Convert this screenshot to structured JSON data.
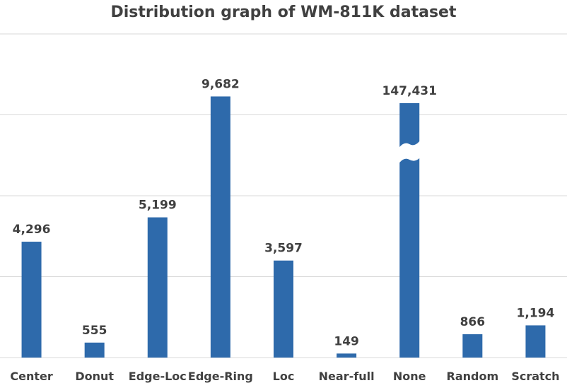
{
  "chart_data": {
    "type": "bar",
    "title": "Distribution graph of WM-811K dataset",
    "xlabel": "",
    "ylabel": "",
    "categories": [
      "Center",
      "Donut",
      "Edge-Loc",
      "Edge-Ring",
      "Loc",
      "Near-full",
      "None",
      "Random",
      "Scratch"
    ],
    "values": [
      4296,
      555,
      5199,
      9682,
      3597,
      149,
      147431,
      866,
      1194
    ],
    "data_labels": [
      "4,296",
      "555",
      "5,199",
      "9,682",
      "3,597",
      "149",
      "147,431",
      "866",
      "1,194"
    ],
    "broken_bar_category": "None",
    "ylim": [
      0,
      12000
    ],
    "grid": true,
    "legend": "none",
    "colors": {
      "bar": "#2E6AAB",
      "grid": "#D9D9D9",
      "text": "#404040",
      "background": "#FFFFFF"
    }
  }
}
